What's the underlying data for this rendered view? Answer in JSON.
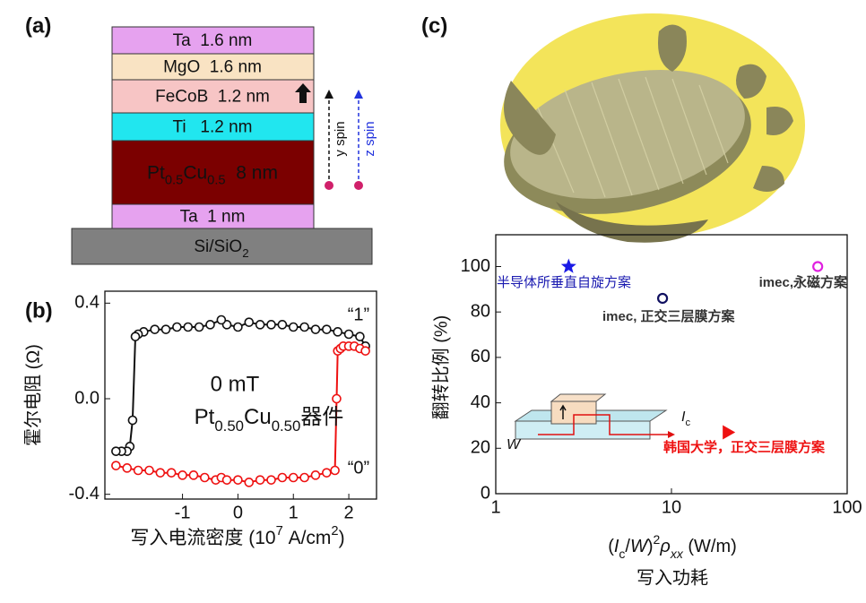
{
  "panels": [
    "(a)",
    "(b)",
    "(c)"
  ],
  "stack": {
    "layers": [
      {
        "parts": [
          {
            "text": "Ta  1.6 nm"
          }
        ],
        "color": "#e6a2ef",
        "text_color": "#111111"
      },
      {
        "parts": [
          {
            "text": "MgO  1.6 nm"
          }
        ],
        "color": "#f9e3c3",
        "text_color": "#111111"
      },
      {
        "parts": [
          {
            "text": "FeCoB  1.2 nm"
          }
        ],
        "color": "#f7c5c5",
        "text_color": "#111111"
      },
      {
        "parts": [
          {
            "text": "Ti   1.2 nm"
          }
        ],
        "color": "#21e6ef",
        "text_color": "#111111"
      },
      {
        "parts": [
          {
            "text": "Pt"
          },
          {
            "text": "0.5",
            "sub": true
          },
          {
            "text": "Cu"
          },
          {
            "text": "0.5",
            "sub": true
          },
          {
            "text": "  8 nm"
          }
        ],
        "color": "#7b0000",
        "text_color": "#ffffff"
      },
      {
        "parts": [
          {
            "text": "Ta  1 nm"
          }
        ],
        "color": "#e6a2ef",
        "text_color": "#111111"
      }
    ],
    "substrate": {
      "parts": [
        {
          "text": "Si/SiO"
        },
        {
          "text": "2",
          "sub": true
        }
      ],
      "color": "#808080",
      "text_color": "#ffffff"
    },
    "spins": [
      "y spin",
      "z spin"
    ]
  },
  "chart_data": [
    {
      "type": "line",
      "ylabel": "霍尔电阻 (Ω)",
      "xlabel_parts": [
        {
          "text": "写入电流密度 (10"
        },
        {
          "text": "7",
          "sup": true
        },
        {
          "text": " A/cm"
        },
        {
          "text": "2",
          "sup": true
        },
        {
          "text": ")"
        }
      ],
      "xlim": [
        -2.4,
        2.5
      ],
      "ylim": [
        -0.42,
        0.45
      ],
      "xticks": [
        -1,
        0,
        1,
        2
      ],
      "yticks": [
        -0.4,
        {
          "value": 0,
          "label": "0.0"
        },
        0.4
      ],
      "annotations": [
        "“1”",
        "“0”",
        "0 mT"
      ],
      "device_parts": [
        {
          "text": "Pt"
        },
        {
          "text": "0.50",
          "sub": true
        },
        {
          "text": "Cu"
        },
        {
          "text": "0.50",
          "sub": true
        },
        {
          "text": "器件"
        }
      ],
      "series": [
        {
          "color": "#111111",
          "x": [
            2.3,
            2.2,
            2.0,
            1.8,
            1.6,
            1.4,
            1.2,
            1.0,
            0.8,
            0.6,
            0.4,
            0.2,
            0.0,
            -0.2,
            -0.3,
            -0.5,
            -0.7,
            -0.9,
            -1.1,
            -1.3,
            -1.5,
            -1.7,
            -1.8,
            -1.85,
            -1.9,
            -1.95,
            -2.0,
            -2.1,
            -2.2
          ],
          "values": [
            0.22,
            0.26,
            0.27,
            0.28,
            0.29,
            0.29,
            0.3,
            0.3,
            0.31,
            0.31,
            0.31,
            0.32,
            0.3,
            0.31,
            0.33,
            0.31,
            0.3,
            0.3,
            0.3,
            0.29,
            0.29,
            0.28,
            0.27,
            0.26,
            -0.09,
            -0.2,
            -0.22,
            -0.22,
            -0.22
          ]
        },
        {
          "color": "#ee1111",
          "x": [
            -2.2,
            -2.0,
            -1.8,
            -1.6,
            -1.4,
            -1.2,
            -1.0,
            -0.8,
            -0.6,
            -0.4,
            -0.3,
            -0.2,
            0.0,
            0.2,
            0.4,
            0.6,
            0.8,
            1.0,
            1.2,
            1.4,
            1.6,
            1.75,
            1.78,
            1.8,
            1.85,
            1.9,
            2.0,
            2.1,
            2.2,
            2.3
          ],
          "values": [
            -0.28,
            -0.29,
            -0.3,
            -0.3,
            -0.31,
            -0.31,
            -0.32,
            -0.32,
            -0.33,
            -0.34,
            -0.33,
            -0.34,
            -0.34,
            -0.35,
            -0.34,
            -0.34,
            -0.33,
            -0.33,
            -0.33,
            -0.32,
            -0.31,
            -0.3,
            0.0,
            0.2,
            0.21,
            0.22,
            0.22,
            0.22,
            0.21,
            0.2
          ]
        }
      ]
    },
    {
      "type": "scatter",
      "xscale": "log",
      "xlim": [
        1,
        100
      ],
      "ylim": [
        0,
        114
      ],
      "xticks": [
        1,
        10,
        100
      ],
      "yticks": [
        0,
        20,
        40,
        60,
        80,
        100
      ],
      "ylabel": "翻转比例 (%)",
      "xlabel_parts": [
        {
          "text": "("
        },
        {
          "text": "I",
          "italic": true
        },
        {
          "text": "c",
          "sub": true
        },
        {
          "text": "/"
        },
        {
          "text": "W",
          "italic": true
        },
        {
          "text": ")"
        },
        {
          "text": "2",
          "sup": true
        },
        {
          "text": "ρ",
          "italic": true
        },
        {
          "text": "xx",
          "sub": true,
          "italic": true
        },
        {
          "text": " (W/m)"
        }
      ],
      "xlabel2": "写入功耗",
      "inset": {
        "current_parts": [
          {
            "text": "I",
            "italic": true
          },
          {
            "text": "c",
            "sub": true
          }
        ],
        "width": "W"
      },
      "series": [
        {
          "name": "半导体所垂直自旋方案",
          "color": "#1a1ae6",
          "label_color": "#1a1ab0",
          "marker": "star",
          "x": [
            2.6
          ],
          "values": [
            100
          ]
        },
        {
          "name": "imec, 正交三层膜方案",
          "color": "#101060",
          "label_color": "#333333",
          "marker": "circle",
          "x": [
            8.9
          ],
          "values": [
            86
          ]
        },
        {
          "name": "imec,永磁方案",
          "color": "#e020e0",
          "label_color": "#333333",
          "marker": "circle",
          "x": [
            68
          ],
          "values": [
            100
          ]
        },
        {
          "name": "韩国大学，正交三层膜方案",
          "color": "#ee1111",
          "label_color": "#ee1111",
          "marker": "triangle",
          "x": [
            21
          ],
          "values": [
            27
          ]
        }
      ]
    }
  ]
}
